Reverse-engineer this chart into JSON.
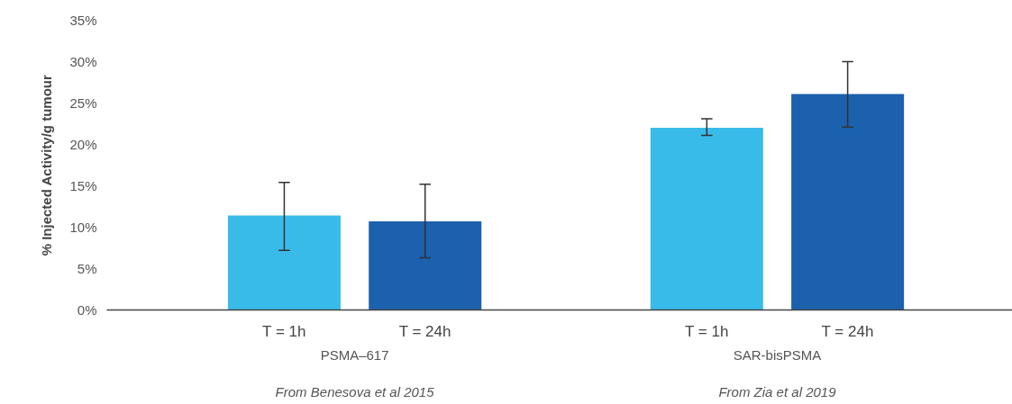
{
  "chart_data": {
    "type": "bar",
    "ylabel": "% Injected Activity/g tumour",
    "categories": [
      "T = 1h",
      "T = 24h",
      "T = 1h",
      "T = 24h"
    ],
    "values": [
      11.4,
      10.7,
      22.0,
      26.1
    ],
    "colors": [
      "#39bbea",
      "#1b61ad",
      "#39bbea",
      "#1b61ad"
    ],
    "errors": [
      [
        7.2,
        15.4
      ],
      [
        6.3,
        15.2
      ],
      [
        21.1,
        23.1
      ],
      [
        22.1,
        30.0
      ]
    ],
    "ylim": [
      0,
      35
    ],
    "yticks": [
      {
        "value": 0,
        "label": "0%"
      },
      {
        "value": 5,
        "label": "5%"
      },
      {
        "value": 10,
        "label": "10%"
      },
      {
        "value": 15,
        "label": "15%"
      },
      {
        "value": 20,
        "label": "20%"
      },
      {
        "value": 25,
        "label": "25%"
      },
      {
        "value": 30,
        "label": "30%"
      },
      {
        "value": 35,
        "label": "35%"
      }
    ],
    "annotations": [
      "PSMA–617",
      "SAR-bisPSMA",
      "From Benesova et al 2015",
      "From Zia et al 2019"
    ],
    "grid": false
  }
}
